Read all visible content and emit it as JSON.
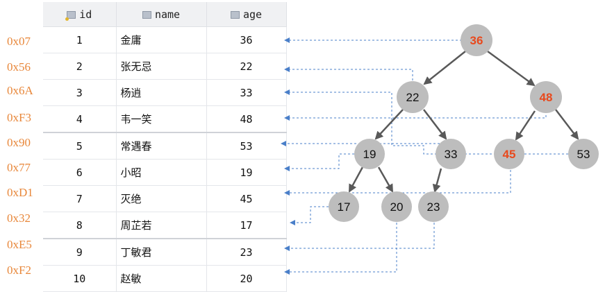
{
  "table": {
    "columns": [
      "id",
      "name",
      "age"
    ],
    "rows": [
      {
        "addr": "0x07",
        "id": "1",
        "name": "金庸",
        "age": "36"
      },
      {
        "addr": "0x56",
        "id": "2",
        "name": "张无忌",
        "age": "22"
      },
      {
        "addr": "0x6A",
        "id": "3",
        "name": "杨逍",
        "age": "33"
      },
      {
        "addr": "0xF3",
        "id": "4",
        "name": "韦一笑",
        "age": "48"
      },
      {
        "addr": "0x90",
        "id": "5",
        "name": "常遇春",
        "age": "53"
      },
      {
        "addr": "0x77",
        "id": "6",
        "name": "小昭",
        "age": "19"
      },
      {
        "addr": "0xD1",
        "id": "7",
        "name": "灭绝",
        "age": "45"
      },
      {
        "addr": "0x32",
        "id": "8",
        "name": "周芷若",
        "age": "17"
      },
      {
        "addr": "0xE5",
        "id": "9",
        "name": "丁敏君",
        "age": "23"
      },
      {
        "addr": "0xF2",
        "id": "10",
        "name": "赵敏",
        "age": "20"
      }
    ]
  },
  "tree": {
    "nodes": [
      {
        "value": "36",
        "highlight": true
      },
      {
        "value": "22",
        "highlight": false
      },
      {
        "value": "48",
        "highlight": true
      },
      {
        "value": "19",
        "highlight": false
      },
      {
        "value": "33",
        "highlight": false
      },
      {
        "value": "45",
        "highlight": true
      },
      {
        "value": "53",
        "highlight": false
      },
      {
        "value": "17",
        "highlight": false
      },
      {
        "value": "20",
        "highlight": false
      },
      {
        "value": "23",
        "highlight": false
      }
    ]
  },
  "colors": {
    "address": "#e8873a",
    "node_fill": "#bdbdbd",
    "highlight_text": "#e8491d",
    "edge": "#595959",
    "pointer": "#4a7fc9"
  }
}
